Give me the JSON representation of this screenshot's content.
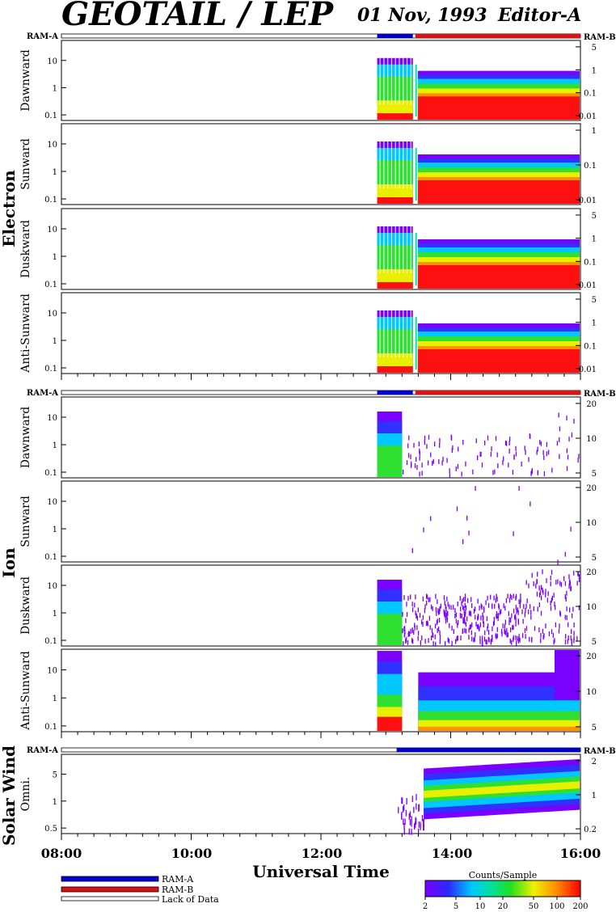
{
  "header": {
    "title": "GEOTAIL / LEP",
    "date": "01 Nov, 1993",
    "editor": "Editor-A"
  },
  "ram_labels": {
    "left": "RAM-A",
    "right": "RAM-B"
  },
  "groups": {
    "electron": "Electron",
    "ion": "Ion",
    "solar_wind": "Solar Wind"
  },
  "xaxis": {
    "label": "Universal Time",
    "ticks": [
      "08:00",
      "10:00",
      "12:00",
      "14:00",
      "16:00"
    ]
  },
  "legend": {
    "ram_a": "RAM-A",
    "ram_b": "RAM-B",
    "lack": "Lack of Data"
  },
  "colorbar": {
    "title": "Counts/Sample",
    "ticks": [
      "2",
      "5",
      "10",
      "20",
      "50",
      "100",
      "200"
    ]
  },
  "colors": {
    "ram_a": "#0000cc",
    "ram_b": "#dd1111"
  },
  "chart_data": [
    {
      "type": "heatmap",
      "group": "Electron",
      "ylabel": "Dawnward",
      "yticks_left": [
        "10",
        "1",
        "0.1"
      ],
      "yticks_right": [
        "5",
        "1",
        "0.1",
        "0.01"
      ],
      "data_start": "12:52",
      "gap": [
        "13:25",
        "13:28"
      ],
      "data_end": "16:00"
    },
    {
      "type": "heatmap",
      "group": "Electron",
      "ylabel": "Sunward",
      "yticks_left": [
        "10",
        "1",
        "0.1"
      ],
      "yticks_right": [
        "1",
        "0.1",
        "0.01"
      ],
      "data_start": "12:52",
      "gap": [
        "13:25",
        "13:28"
      ],
      "data_end": "16:00"
    },
    {
      "type": "heatmap",
      "group": "Electron",
      "ylabel": "Duskward",
      "yticks_left": [
        "10",
        "1",
        "0.1"
      ],
      "yticks_right": [
        "5",
        "1",
        "0.1",
        "0.01"
      ],
      "data_start": "12:52",
      "gap": [
        "13:25",
        "13:28"
      ],
      "data_end": "16:00"
    },
    {
      "type": "heatmap",
      "group": "Electron",
      "ylabel": "Anti-Sunward",
      "yticks_left": [
        "10",
        "1",
        "0.1"
      ],
      "yticks_right": [
        "5",
        "1",
        "0.1",
        "0.01"
      ],
      "data_start": "12:52",
      "gap": [
        "13:25",
        "13:28"
      ],
      "data_end": "16:00"
    },
    {
      "type": "heatmap",
      "group": "Ion",
      "ylabel": "Dawnward",
      "yticks_left": [
        "10",
        "1",
        "0.1"
      ],
      "yticks_right": [
        "20",
        "10",
        "5"
      ],
      "data_start": "12:52",
      "data_end": "16:00"
    },
    {
      "type": "heatmap",
      "group": "Ion",
      "ylabel": "Sunward",
      "yticks_left": [
        "10",
        "1",
        "0.1"
      ],
      "yticks_right": [
        "20",
        "10",
        "5"
      ],
      "data_start": "12:52",
      "data_end": "16:00"
    },
    {
      "type": "heatmap",
      "group": "Ion",
      "ylabel": "Duskward",
      "yticks_left": [
        "10",
        "1",
        "0.1"
      ],
      "yticks_right": [
        "20",
        "10",
        "5"
      ],
      "data_start": "12:52",
      "data_end": "16:00"
    },
    {
      "type": "heatmap",
      "group": "Ion",
      "ylabel": "Anti-Sunward",
      "yticks_left": [
        "10",
        "1",
        "0.1"
      ],
      "yticks_right": [
        "20",
        "10",
        "5"
      ],
      "data_start": "12:52",
      "data_end": "16:00"
    },
    {
      "type": "heatmap",
      "group": "Solar Wind",
      "ylabel": "Omni.",
      "yticks_left": [
        "5",
        "1",
        "0.5"
      ],
      "yticks_right": [
        "2",
        "1",
        "0.2"
      ],
      "data_start": "13:10",
      "data_end": "16:00"
    }
  ]
}
